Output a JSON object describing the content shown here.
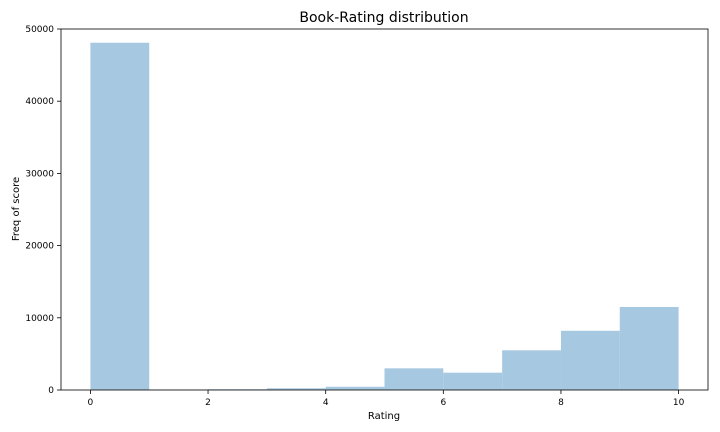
{
  "chart_data": {
    "type": "bar",
    "title": "Book-Rating distribution",
    "xlabel": "Rating",
    "ylabel": "Freq of score",
    "bins": [
      {
        "x0": 0,
        "x1": 1,
        "value": 48100
      },
      {
        "x0": 1,
        "x1": 2,
        "value": 70
      },
      {
        "x0": 2,
        "x1": 3,
        "value": 100
      },
      {
        "x0": 3,
        "x1": 4,
        "value": 240
      },
      {
        "x0": 4,
        "x1": 5,
        "value": 450
      },
      {
        "x0": 5,
        "x1": 6,
        "value": 3000
      },
      {
        "x0": 6,
        "x1": 7,
        "value": 2400
      },
      {
        "x0": 7,
        "x1": 8,
        "value": 5500
      },
      {
        "x0": 8,
        "x1": 9,
        "value": 8200
      },
      {
        "x0": 9,
        "x1": 10,
        "value": 11500
      }
    ],
    "xlim": [
      -0.5,
      10.5
    ],
    "ylim": [
      0,
      50000
    ],
    "xticks": [
      0,
      2,
      4,
      6,
      8,
      10
    ],
    "yticks": [
      0,
      10000,
      20000,
      30000,
      40000,
      50000
    ],
    "bar_color": "#a6c8e0",
    "grid": false,
    "legend": "none"
  }
}
